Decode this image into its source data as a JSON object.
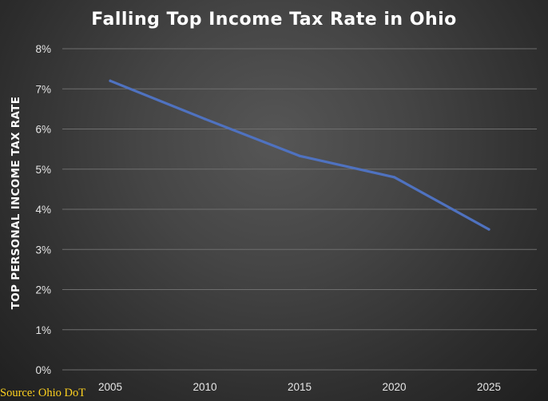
{
  "chart_data": {
    "type": "line",
    "title": "Falling Top Income Tax Rate in Ohio",
    "xlabel": "",
    "ylabel": "TOP PERSONAL INCOME TAX RATE",
    "x": [
      2005,
      2010,
      2015,
      2020,
      2025
    ],
    "x_tick_labels": [
      "2005",
      "2010",
      "2015",
      "2020",
      "2025"
    ],
    "y_ticks": [
      0,
      1,
      2,
      3,
      4,
      5,
      6,
      7,
      8
    ],
    "y_tick_labels": [
      "0%",
      "1%",
      "2%",
      "3%",
      "4%",
      "5%",
      "6%",
      "7%",
      "8%"
    ],
    "ylim": [
      0,
      8
    ],
    "grid": "horizontal",
    "legend": "none",
    "series": [
      {
        "values": [
          7.2,
          6.25,
          5.33,
          4.8,
          3.5
        ],
        "color": "#4f72c0"
      }
    ]
  },
  "source_note": "Source: Ohio DoT",
  "colors": {
    "background": "#404040",
    "gridline": "#6e6e6e",
    "line": "#4f72c0",
    "title": "#ffffff",
    "source": "#ffd21f"
  }
}
